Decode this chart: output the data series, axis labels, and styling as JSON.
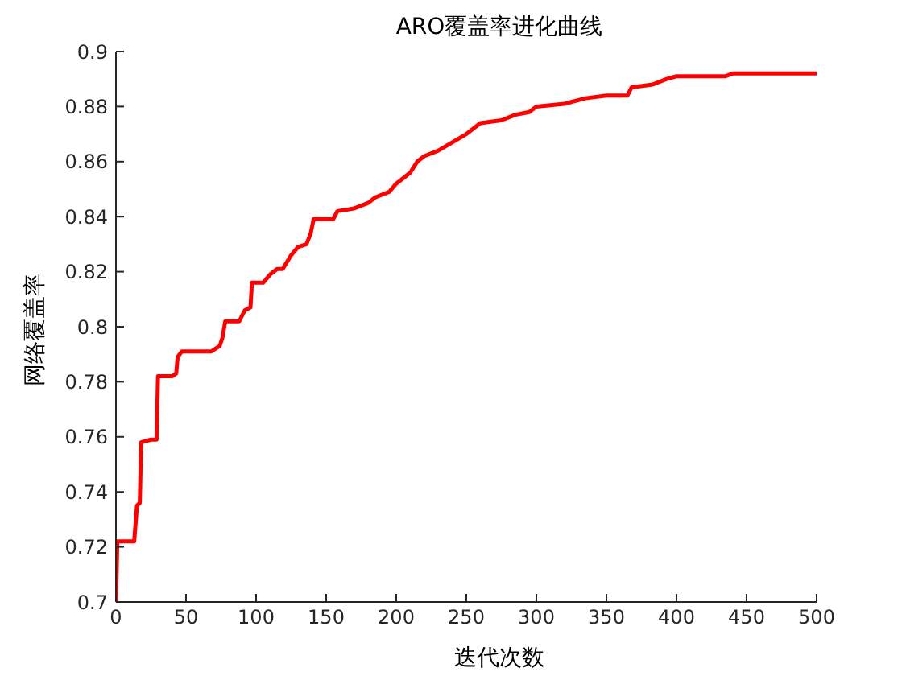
{
  "chart_data": {
    "type": "line",
    "title": "ARO覆盖率进化曲线",
    "xlabel": "迭代次数",
    "ylabel": "网络覆盖率",
    "x": [
      0,
      1,
      13,
      15,
      17,
      18,
      25,
      29,
      30,
      40,
      43,
      44,
      47,
      68,
      74,
      76,
      78,
      88,
      92,
      96,
      97,
      105,
      110,
      115,
      119,
      125,
      130,
      136,
      139,
      141,
      155,
      158,
      170,
      180,
      185,
      195,
      200,
      210,
      215,
      220,
      230,
      240,
      250,
      255,
      260,
      275,
      285,
      295,
      300,
      320,
      335,
      350,
      365,
      368,
      383,
      393,
      400,
      435,
      440,
      500
    ],
    "series": [
      {
        "color": "#ff0000",
        "values": [
          0.7,
          0.722,
          0.722,
          0.735,
          0.736,
          0.758,
          0.759,
          0.759,
          0.782,
          0.782,
          0.783,
          0.789,
          0.791,
          0.791,
          0.793,
          0.796,
          0.802,
          0.802,
          0.806,
          0.807,
          0.816,
          0.816,
          0.819,
          0.821,
          0.821,
          0.826,
          0.829,
          0.83,
          0.834,
          0.839,
          0.839,
          0.842,
          0.843,
          0.845,
          0.847,
          0.849,
          0.852,
          0.856,
          0.86,
          0.862,
          0.864,
          0.867,
          0.87,
          0.872,
          0.874,
          0.875,
          0.877,
          0.878,
          0.88,
          0.881,
          0.883,
          0.884,
          0.884,
          0.887,
          0.888,
          0.89,
          0.891,
          0.891,
          0.892,
          0.892
        ]
      }
    ],
    "xlim": [
      0,
      500
    ],
    "xticks": [
      0,
      50,
      100,
      150,
      200,
      250,
      300,
      350,
      400,
      450,
      500
    ],
    "ylim": [
      0.7,
      0.9
    ],
    "yticks": [
      0.7,
      0.72,
      0.74,
      0.76,
      0.78,
      0.8,
      0.82,
      0.84,
      0.86,
      0.88,
      0.9
    ],
    "grid": false,
    "legend": false,
    "marker": "none",
    "line_style": "solid"
  }
}
